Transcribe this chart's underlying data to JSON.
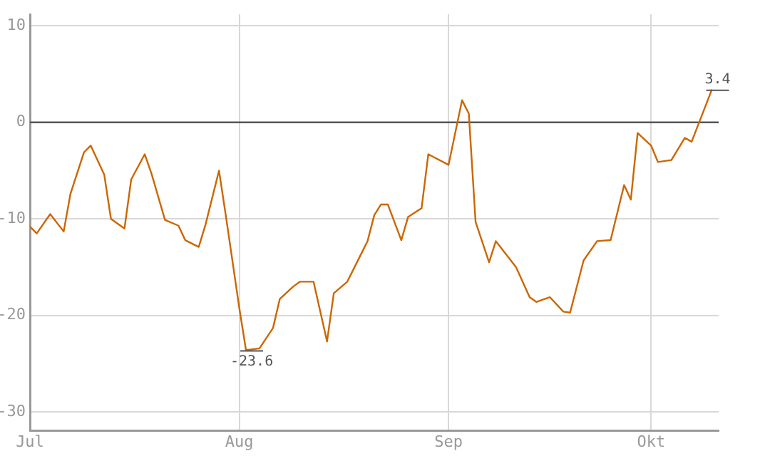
{
  "chart_data": {
    "type": "line",
    "x": [
      "--07-01",
      "--07-02",
      "--07-04",
      "--07-06",
      "--07-07",
      "--07-09",
      "--07-10",
      "--07-12",
      "--07-13",
      "--07-15",
      "--07-16",
      "--07-18",
      "--07-19",
      "--07-21",
      "--07-23",
      "--07-24",
      "--07-26",
      "--07-27",
      "--07-29",
      "--07-30",
      "--08-01",
      "--08-02",
      "--08-04",
      "--08-06",
      "--08-07",
      "--08-09",
      "--08-10",
      "--08-12",
      "--08-14",
      "--08-15",
      "--08-17",
      "--08-18",
      "--08-20",
      "--08-21",
      "--08-22",
      "--08-23",
      "--08-25",
      "--08-26",
      "--08-28",
      "--08-29",
      "--09-01",
      "--09-03",
      "--09-04",
      "--09-05",
      "--09-07",
      "--09-08",
      "--09-11",
      "--09-13",
      "--09-14",
      "--09-16",
      "--09-18",
      "--09-19",
      "--09-21",
      "--09-23",
      "--09-25",
      "--09-27",
      "--09-28",
      "--09-29",
      "--10-01",
      "--10-02",
      "--10-04",
      "--10-06",
      "--10-07",
      "--10-10"
    ],
    "values": [
      -10.8,
      -11.5,
      -9.5,
      -11.3,
      -7.4,
      -3.1,
      -2.4,
      -5.4,
      -10.0,
      -11.0,
      -5.9,
      -3.3,
      -5.3,
      -10.1,
      -10.7,
      -12.2,
      -12.9,
      -10.6,
      -5.0,
      -9.6,
      -19.2,
      -23.6,
      -23.4,
      -21.3,
      -18.3,
      -17.0,
      -16.5,
      -16.5,
      -22.7,
      -17.7,
      -16.5,
      -15.1,
      -12.3,
      -9.6,
      -8.5,
      -8.5,
      -12.2,
      -9.8,
      -8.9,
      -3.3,
      -4.4,
      2.3,
      0.9,
      -10.3,
      -14.5,
      -12.3,
      -15.0,
      -18.1,
      -18.6,
      -18.1,
      -19.6,
      -19.7,
      -14.3,
      -12.3,
      -12.2,
      -6.5,
      -8.0,
      -1.1,
      -2.4,
      -4.1,
      -3.9,
      -1.6,
      -2.0,
      3.4
    ],
    "value_labels": [
      null,
      null,
      null,
      null,
      null,
      null,
      null,
      null,
      null,
      null,
      null,
      null,
      null,
      null,
      null,
      null,
      null,
      null,
      null,
      null,
      null,
      "-23.6",
      null,
      null,
      null,
      null,
      null,
      null,
      null,
      null,
      null,
      null,
      null,
      null,
      null,
      null,
      null,
      null,
      null,
      null,
      null,
      null,
      null,
      null,
      null,
      null,
      null,
      null,
      null,
      null,
      null,
      null,
      null,
      null,
      null,
      null,
      null,
      null,
      null,
      null,
      null,
      null,
      null,
      "3.4"
    ],
    "color": "#cc6600",
    "xlim": [
      "--07-01",
      "--10-11"
    ],
    "xticks": [
      {
        "value": "--07-01",
        "label": "Jul"
      },
      {
        "value": "--08-01",
        "label": "Aug"
      },
      {
        "value": "--09-01",
        "label": "Sep"
      },
      {
        "value": "--10-01",
        "label": "Okt"
      }
    ],
    "ylim": [
      -31.9,
      11.2
    ],
    "yticks": [
      10,
      0,
      -10,
      -20,
      -30
    ],
    "grid": true,
    "ref_lines": [
      {
        "axis": "y",
        "value": 0,
        "color": "#555555"
      }
    ]
  }
}
